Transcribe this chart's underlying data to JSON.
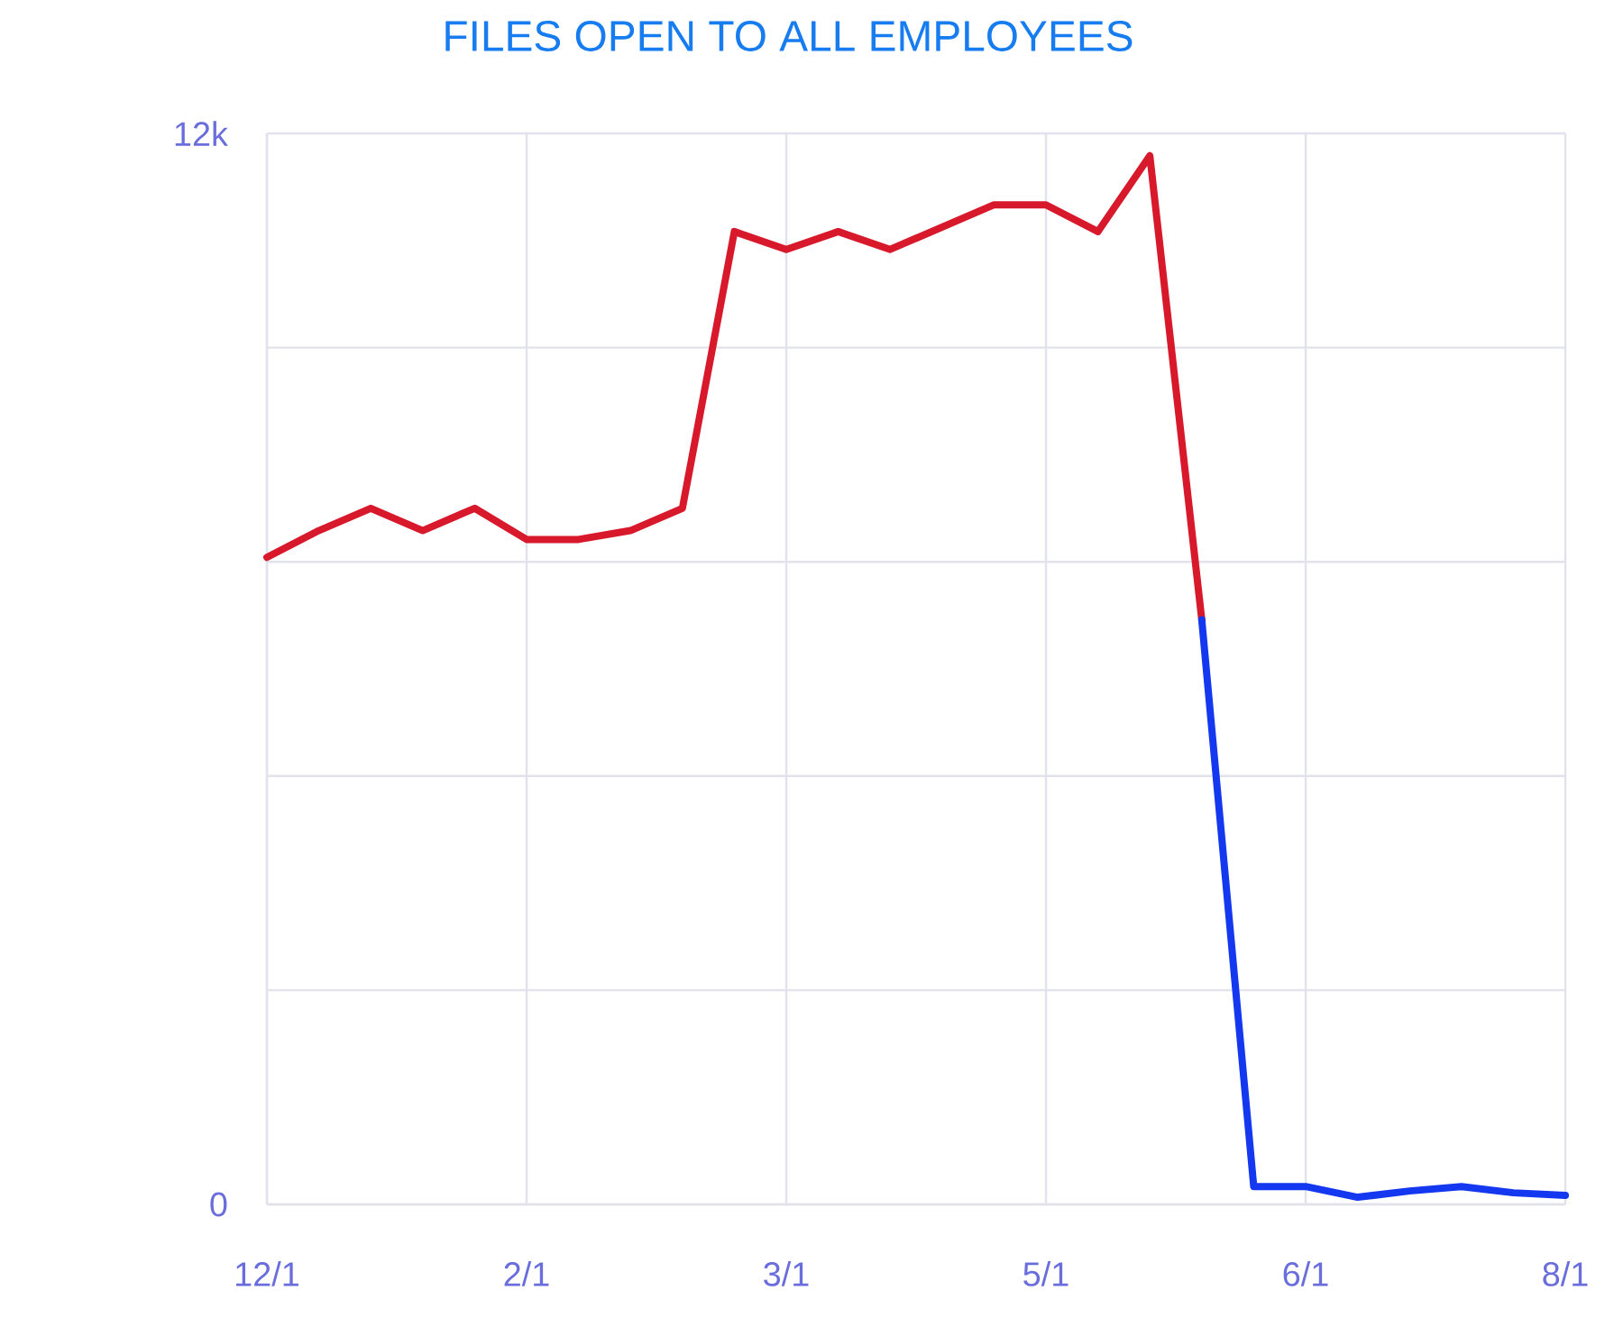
{
  "chart_data": {
    "type": "line",
    "title": "FILES OPEN TO ALL EMPLOYEES",
    "categories": [
      "12/1",
      null,
      null,
      null,
      null,
      "2/1",
      null,
      null,
      null,
      null,
      "3/1",
      null,
      null,
      null,
      null,
      "5/1",
      null,
      null,
      null,
      null,
      "6/1",
      null,
      null,
      null,
      null,
      "8/1"
    ],
    "ylim": [
      0,
      12000
    ],
    "yticks": [
      {
        "value": 0,
        "label": "0"
      },
      {
        "value": 2400,
        "label": null
      },
      {
        "value": 4800,
        "label": null
      },
      {
        "value": 7200,
        "label": null
      },
      {
        "value": 9600,
        "label": null
      },
      {
        "value": 12000,
        "label": "12k"
      }
    ],
    "grid": true,
    "marker": "none",
    "line_style": "solid",
    "series": [
      {
        "color": "#d7192b",
        "values": [
          7250,
          7550,
          7800,
          7550,
          7800,
          7450,
          7450,
          7550,
          7800,
          10900,
          10700,
          10900,
          10700,
          10950,
          11200,
          11200,
          10900,
          11750,
          6550,
          null,
          null,
          null,
          null,
          null,
          null,
          null
        ]
      },
      {
        "color": "#1437f0",
        "values": [
          null,
          null,
          null,
          null,
          null,
          null,
          null,
          null,
          null,
          null,
          null,
          null,
          null,
          null,
          null,
          null,
          null,
          null,
          6550,
          200,
          200,
          80,
          150,
          200,
          130,
          100
        ]
      }
    ]
  }
}
